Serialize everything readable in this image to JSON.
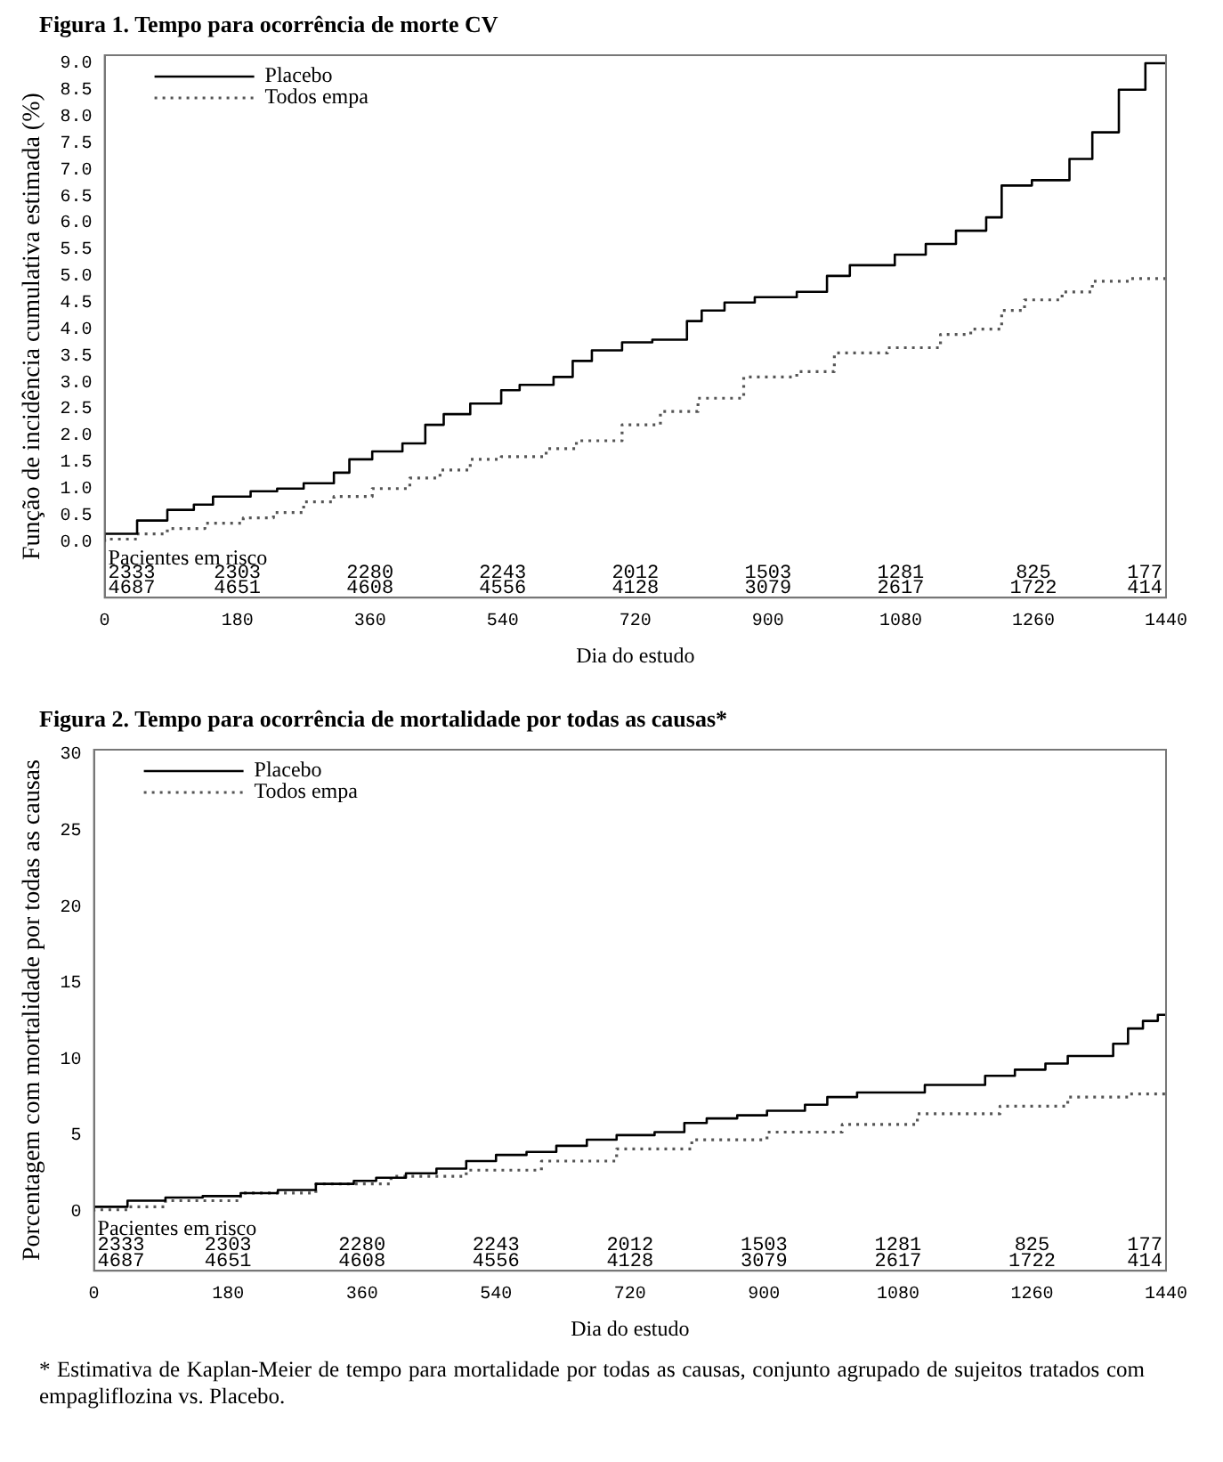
{
  "chart_data": [
    {
      "type": "step",
      "title": "Figura 1. Tempo para ocorrência de morte CV",
      "xlabel": "Dia do estudo",
      "ylabel": "Função de incidência cumulativa estimada (%)",
      "xlim": [
        0,
        1440
      ],
      "xticks": [
        0,
        180,
        360,
        540,
        720,
        900,
        1080,
        1260,
        1440
      ],
      "ylim": [
        -1.05,
        9.15
      ],
      "yticks": [
        {
          "value": 0,
          "label": "0.0"
        },
        0.5,
        {
          "value": 1,
          "label": "1.0"
        },
        1.5,
        {
          "value": 2,
          "label": "2.0"
        },
        2.5,
        {
          "value": 3,
          "label": "3.0"
        },
        3.5,
        {
          "value": 4,
          "label": "4.0"
        },
        4.5,
        {
          "value": 5,
          "label": "5.0"
        },
        5.5,
        {
          "value": 6,
          "label": "6.0"
        },
        6.5,
        {
          "value": 7,
          "label": "7.0"
        },
        7.5,
        {
          "value": 8,
          "label": "8.0"
        },
        8.5,
        {
          "value": 9,
          "label": "9.0"
        }
      ],
      "grid": false,
      "legend": "top left",
      "series": [
        {
          "name": "Placebo",
          "color": "#000000",
          "line_style": "solid",
          "x": [
            0,
            44,
            85,
            121,
            147,
            198,
            234,
            270,
            311,
            332,
            363,
            404,
            435,
            460,
            496,
            538,
            563,
            609,
            635,
            661,
            702,
            743,
            790,
            810,
            841,
            882,
            939,
            980,
            1011,
            1072,
            1114,
            1155,
            1196,
            1217,
            1258,
            1309,
            1340,
            1376,
            1412,
            1433,
            1440
          ],
          "values": [
            0,
            0.15,
            0.4,
            0.6,
            0.7,
            0.85,
            0.95,
            1.0,
            1.1,
            1.3,
            1.55,
            1.7,
            1.85,
            2.2,
            2.4,
            2.6,
            2.85,
            2.95,
            3.1,
            3.4,
            3.6,
            3.75,
            3.8,
            4.15,
            4.35,
            4.5,
            4.6,
            4.7,
            5.0,
            5.2,
            5.4,
            5.6,
            5.85,
            6.1,
            6.7,
            6.8,
            7.2,
            7.7,
            8.5,
            9.0,
            9.0
          ]
        },
        {
          "name": "Todos empa",
          "color": "#555555",
          "line_style": "dotted",
          "x": [
            0,
            44,
            85,
            136,
            188,
            229,
            270,
            311,
            363,
            414,
            455,
            496,
            538,
            599,
            640,
            702,
            754,
            805,
            867,
            939,
            990,
            1062,
            1134,
            1175,
            1217,
            1248,
            1299,
            1340,
            1391,
            1440
          ],
          "values": [
            0,
            0.05,
            0.15,
            0.25,
            0.35,
            0.45,
            0.55,
            0.75,
            0.85,
            1.0,
            1.2,
            1.35,
            1.55,
            1.6,
            1.75,
            1.9,
            2.2,
            2.45,
            2.7,
            3.1,
            3.2,
            3.55,
            3.65,
            3.9,
            4.0,
            4.35,
            4.55,
            4.7,
            4.9,
            4.95
          ]
        }
      ],
      "annotations": [
        "Pacientes em risco",
        "2333",
        "2303",
        "2280",
        "2243",
        "2012",
        "1503",
        "1281",
        "825",
        "177",
        "4687",
        "4651",
        "4608",
        "4556",
        "4128",
        "3079",
        "2617",
        "1722",
        "414"
      ]
    },
    {
      "type": "step",
      "title": "Figura 2. Tempo para ocorrência de mortalidade por todas as causas*",
      "xlabel": "Dia do estudo",
      "ylabel": "Porcentagem com mortalidade por todas as causas",
      "xlim": [
        0,
        1440
      ],
      "xticks": [
        0,
        180,
        360,
        540,
        720,
        900,
        1080,
        1260,
        1440
      ],
      "ylim": [
        -3.9,
        30.3
      ],
      "yticks": [
        0,
        5,
        10,
        15,
        20,
        25,
        30
      ],
      "grid": false,
      "legend": "top left",
      "series": [
        {
          "name": "Placebo",
          "color": "#000000",
          "line_style": "solid",
          "x": [
            0,
            45,
            96,
            146,
            197,
            247,
            298,
            349,
            379,
            419,
            460,
            500,
            540,
            581,
            621,
            662,
            702,
            753,
            793,
            823,
            864,
            904,
            955,
            985,
            1025,
            1116,
            1197,
            1237,
            1278,
            1308,
            1369,
            1389,
            1409,
            1429,
            1434,
            1440
          ],
          "values": [
            0,
            0.3,
            0.7,
            0.9,
            1.0,
            1.2,
            1.4,
            1.8,
            2.0,
            2.2,
            2.5,
            2.8,
            3.3,
            3.7,
            3.9,
            4.3,
            4.7,
            5.0,
            5.2,
            5.8,
            6.1,
            6.3,
            6.6,
            7.0,
            7.5,
            7.8,
            8.3,
            8.9,
            9.3,
            9.7,
            10.2,
            11.0,
            12.0,
            12.5,
            12.9,
            12.9
          ]
        },
        {
          "name": "Todos empa",
          "color": "#555555",
          "line_style": "dotted",
          "x": [
            0,
            45,
            96,
            197,
            298,
            399,
            500,
            601,
            702,
            803,
            904,
            1005,
            1106,
            1217,
            1308,
            1389,
            1434,
            1440
          ],
          "values": [
            0,
            0.1,
            0.3,
            0.7,
            1.2,
            1.8,
            2.3,
            2.7,
            3.3,
            4.1,
            4.7,
            5.2,
            5.7,
            6.4,
            6.9,
            7.5,
            7.7,
            7.7
          ]
        }
      ],
      "annotations": [
        "Pacientes em risco",
        "2333",
        "2303",
        "2280",
        "2243",
        "2012",
        "1503",
        "1281",
        "825",
        "177",
        "4687",
        "4651",
        "4608",
        "4556",
        "4128",
        "3079",
        "2617",
        "1722",
        "414",
        "* Estimativa de Kaplan-Meier de tempo para mortalidade por todas as causas, conjunto agrupado de sujeitos tratados com empagliflozina vs. Placebo."
      ]
    }
  ]
}
